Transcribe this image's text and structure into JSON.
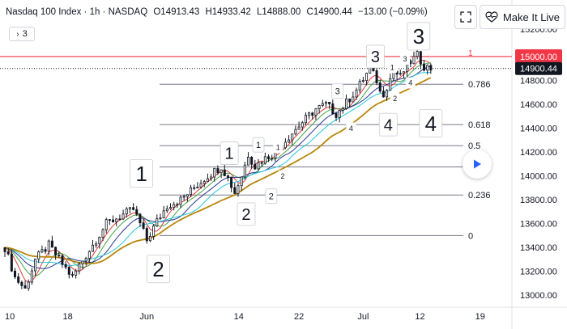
{
  "header": {
    "symbol": "Nasdaq 100 Index · 1h · NASDAQ",
    "open": "O14913.43",
    "high": "H14933.42",
    "low": "L14888.00",
    "close": "C14900.44",
    "change": "−13.00 (−0.09%)"
  },
  "indicator_badge": {
    "count": "3"
  },
  "buttons": {
    "live_label": "Make It Live"
  },
  "colors": {
    "candles": "#131722",
    "resistance": "#f23645",
    "fib": "#787b86",
    "ma_red": "#e53935",
    "ma_green": "#43a047",
    "ma_navy": "#283593",
    "ma_cyan": "#26c6da",
    "ma_gold": "#b8860b",
    "accent": "#2962ff"
  },
  "chart_data": {
    "type": "candlestick",
    "title": "Nasdaq 100 Index · 1h · NASDAQ",
    "xlabel": "",
    "ylabel": "",
    "ylim": [
      12900,
      15230
    ],
    "x_ticks": [
      "10",
      "18",
      "Jun",
      "14",
      "22",
      "Jul",
      "12",
      "19"
    ],
    "y_ticks": [
      13000,
      13200,
      13400,
      13600,
      13800,
      14000,
      14200,
      14400,
      14600,
      14800
    ],
    "y_tick_labels": [
      "13000.00",
      "13200.00",
      "13400.00",
      "13600.00",
      "13800.00",
      "14000.00",
      "14200.00",
      "14400.00",
      "14600.00",
      "14800.00"
    ],
    "top_partial_tick": "15200.00",
    "price_label": "14900.44",
    "resistance": {
      "value": 15000,
      "label": "15000.00",
      "tag": "1"
    },
    "fib_levels": [
      {
        "label": "0.786",
        "value": 14768
      },
      {
        "label": "0.618",
        "value": 14430
      },
      {
        "label": "0.5",
        "value": 14253
      },
      {
        "label": "",
        "value": 14075
      },
      {
        "label": "0.236",
        "value": 13840
      },
      {
        "label": "0",
        "value": 13500
      }
    ],
    "price_path": [
      {
        "t": 0,
        "v": 13400
      },
      {
        "t": 1.5,
        "v": 13150
      },
      {
        "t": 3,
        "v": 13050
      },
      {
        "t": 4.5,
        "v": 13300
      },
      {
        "t": 6.5,
        "v": 13420
      },
      {
        "t": 8,
        "v": 13300
      },
      {
        "t": 10,
        "v": 13150
      },
      {
        "t": 11,
        "v": 13250
      },
      {
        "t": 13,
        "v": 13420
      },
      {
        "t": 15,
        "v": 13600
      },
      {
        "t": 17,
        "v": 13660
      },
      {
        "t": 19,
        "v": 13720
      },
      {
        "t": 20,
        "v": 13600
      },
      {
        "t": 21,
        "v": 13460
      },
      {
        "t": 22.5,
        "v": 13620
      },
      {
        "t": 24,
        "v": 13750
      },
      {
        "t": 26,
        "v": 13800
      },
      {
        "t": 28,
        "v": 13900
      },
      {
        "t": 30,
        "v": 14000
      },
      {
        "t": 32,
        "v": 14080
      },
      {
        "t": 33,
        "v": 13980
      },
      {
        "t": 34,
        "v": 13860
      },
      {
        "t": 35,
        "v": 14000
      },
      {
        "t": 36,
        "v": 14180
      },
      {
        "t": 37,
        "v": 14080
      },
      {
        "t": 38,
        "v": 14130
      },
      {
        "t": 40,
        "v": 14200
      },
      {
        "t": 42,
        "v": 14330
      },
      {
        "t": 44,
        "v": 14450
      },
      {
        "t": 46,
        "v": 14560
      },
      {
        "t": 47.5,
        "v": 14600
      },
      {
        "t": 49,
        "v": 14520
      },
      {
        "t": 50,
        "v": 14580
      },
      {
        "t": 52,
        "v": 14720
      },
      {
        "t": 54,
        "v": 14900
      },
      {
        "t": 55,
        "v": 14800
      },
      {
        "t": 55.7,
        "v": 14660
      },
      {
        "t": 56.5,
        "v": 14750
      },
      {
        "t": 57.5,
        "v": 14880
      },
      {
        "t": 58.5,
        "v": 14830
      },
      {
        "t": 59.5,
        "v": 14930
      },
      {
        "t": 61,
        "v": 15010
      },
      {
        "t": 62,
        "v": 14920
      },
      {
        "t": 63,
        "v": 14900
      }
    ],
    "moving_averages": [
      {
        "color": "#e53935",
        "lag": 2.2
      },
      {
        "color": "#43a047",
        "lag": 3.5
      },
      {
        "color": "#283593",
        "lag": 5.5
      },
      {
        "color": "#26c6da",
        "lag": 8
      },
      {
        "color": "#b8860b",
        "lag": 13
      }
    ],
    "wave_labels": [
      {
        "label": "1",
        "t": 20.2,
        "v": 14020,
        "size": "large"
      },
      {
        "label": "2",
        "t": 22.7,
        "v": 13220,
        "size": "large"
      },
      {
        "label": "1",
        "t": 33.2,
        "v": 14190,
        "size": "medium"
      },
      {
        "label": "2",
        "t": 35.7,
        "v": 13680,
        "size": "medium"
      },
      {
        "label": "1",
        "t": 37.5,
        "v": 14260,
        "size": "small"
      },
      {
        "label": "2",
        "t": 39.4,
        "v": 13830,
        "size": "small"
      },
      {
        "label": "1",
        "t": 40.4,
        "v": 14240,
        "size": "tiny"
      },
      {
        "label": "2",
        "t": 41.1,
        "v": 14000,
        "size": "tiny"
      },
      {
        "label": "3",
        "t": 49.2,
        "v": 14710,
        "size": "small"
      },
      {
        "label": "4",
        "t": 51.2,
        "v": 14400,
        "size": "tiny"
      },
      {
        "label": "3",
        "t": 54.8,
        "v": 15000,
        "size": "medium"
      },
      {
        "label": "4",
        "t": 56.7,
        "v": 14430,
        "size": "medium"
      },
      {
        "label": "1",
        "t": 57.3,
        "v": 14910,
        "size": "tiny"
      },
      {
        "label": "2",
        "t": 57.7,
        "v": 14650,
        "size": "tiny"
      },
      {
        "label": "3",
        "t": 59.2,
        "v": 14980,
        "size": "tiny"
      },
      {
        "label": "4",
        "t": 60,
        "v": 14780,
        "size": "tiny"
      },
      {
        "label": "3",
        "t": 61.2,
        "v": 15170,
        "size": "large"
      },
      {
        "label": "4",
        "t": 63,
        "v": 14440,
        "size": "large"
      }
    ],
    "grid": false,
    "legend": "none"
  }
}
